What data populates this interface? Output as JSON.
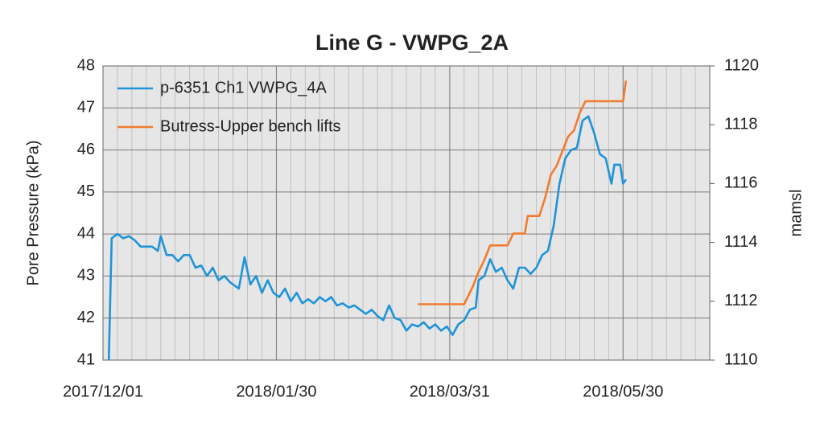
{
  "chart_data": {
    "type": "line",
    "title": "Line G - VWPG_2A",
    "ylabel": "Pore Pressure (kPa)",
    "y2label": "mamsl",
    "xlim": [
      "2017/12/01",
      "2018/06/29"
    ],
    "xticks": [
      "2017/12/01",
      "2018/01/30",
      "2018/03/31",
      "2018/05/30"
    ],
    "ylim": [
      41,
      48
    ],
    "yticks": [
      41,
      42,
      43,
      44,
      45,
      46,
      47,
      48
    ],
    "y2lim": [
      1110,
      1120
    ],
    "y2ticks": [
      1110,
      1112,
      1114,
      1116,
      1118,
      1120
    ],
    "grid": true,
    "legend": "upper left",
    "series": [
      {
        "name": "p-6351 Ch1 VWPG_4A",
        "color": "#1f93d8",
        "x": [
          "2017/12/03",
          "2017/12/04",
          "2017/12/06",
          "2017/12/08",
          "2017/12/10",
          "2017/12/12",
          "2017/12/14",
          "2017/12/16",
          "2017/12/18",
          "2017/12/20",
          "2017/12/21",
          "2017/12/23",
          "2017/12/25",
          "2017/12/27",
          "2017/12/29",
          "2017/12/31",
          "2018/01/02",
          "2018/01/04",
          "2018/01/06",
          "2018/01/08",
          "2018/01/10",
          "2018/01/12",
          "2018/01/14",
          "2018/01/17",
          "2018/01/19",
          "2018/01/21",
          "2018/01/23",
          "2018/01/25",
          "2018/01/27",
          "2018/01/29",
          "2018/01/31",
          "2018/02/02",
          "2018/02/04",
          "2018/02/06",
          "2018/02/08",
          "2018/02/10",
          "2018/02/12",
          "2018/02/14",
          "2018/02/16",
          "2018/02/18",
          "2018/02/20",
          "2018/02/22",
          "2018/02/24",
          "2018/02/26",
          "2018/02/28",
          "2018/03/02",
          "2018/03/04",
          "2018/03/06",
          "2018/03/08",
          "2018/03/10",
          "2018/03/12",
          "2018/03/14",
          "2018/03/16",
          "2018/03/18",
          "2018/03/20",
          "2018/03/22",
          "2018/03/24",
          "2018/03/26",
          "2018/03/28",
          "2018/03/30",
          "2018/04/01",
          "2018/04/03",
          "2018/04/05",
          "2018/04/07",
          "2018/04/09",
          "2018/04/10",
          "2018/04/12",
          "2018/04/14",
          "2018/04/16",
          "2018/04/18",
          "2018/04/20",
          "2018/04/22",
          "2018/04/24",
          "2018/04/26",
          "2018/04/28",
          "2018/04/30",
          "2018/05/02",
          "2018/05/04",
          "2018/05/06",
          "2018/05/08",
          "2018/05/10",
          "2018/05/12",
          "2018/05/14",
          "2018/05/16",
          "2018/05/18",
          "2018/05/20",
          "2018/05/22",
          "2018/05/24",
          "2018/05/26",
          "2018/05/27",
          "2018/05/29",
          "2018/05/30",
          "2018/05/31"
        ],
        "values": [
          41,
          43.9,
          44.0,
          43.9,
          43.95,
          43.85,
          43.7,
          43.7,
          43.7,
          43.6,
          43.95,
          43.5,
          43.5,
          43.35,
          43.5,
          43.5,
          43.2,
          43.25,
          43.0,
          43.2,
          42.9,
          43.0,
          42.85,
          42.7,
          43.45,
          42.8,
          43.0,
          42.6,
          42.9,
          42.6,
          42.5,
          42.7,
          42.4,
          42.6,
          42.35,
          42.45,
          42.35,
          42.5,
          42.4,
          42.5,
          42.3,
          42.35,
          42.25,
          42.3,
          42.2,
          42.1,
          42.2,
          42.05,
          41.95,
          42.3,
          42.0,
          41.95,
          41.7,
          41.85,
          41.8,
          41.9,
          41.75,
          41.85,
          41.7,
          41.8,
          41.6,
          41.85,
          41.95,
          42.2,
          42.25,
          42.9,
          43.0,
          43.4,
          43.1,
          43.2,
          42.9,
          42.7,
          43.2,
          43.2,
          43.05,
          43.2,
          43.5,
          43.6,
          44.2,
          45.2,
          45.8,
          46.0,
          46.05,
          46.7,
          46.8,
          46.4,
          45.9,
          45.8,
          45.2,
          45.65,
          45.65,
          45.2,
          45.3
        ]
      },
      {
        "name": "Butress-Upper bench lifts",
        "color": "#f07c2f",
        "axis": "y2",
        "x": [
          "2018/03/20",
          "2018/04/05",
          "2018/04/08",
          "2018/04/10",
          "2018/04/12",
          "2018/04/14",
          "2018/04/20",
          "2018/04/22",
          "2018/04/26",
          "2018/04/27",
          "2018/05/01",
          "2018/05/03",
          "2018/05/05",
          "2018/05/07",
          "2018/05/09",
          "2018/05/11",
          "2018/05/13",
          "2018/05/15",
          "2018/05/17",
          "2018/05/30",
          "2018/05/31"
        ],
        "values": [
          1111.9,
          1111.9,
          1112.5,
          1113,
          1113.4,
          1113.9,
          1113.9,
          1114.3,
          1114.3,
          1114.9,
          1114.9,
          1115.5,
          1116.3,
          1116.6,
          1117.1,
          1117.6,
          1117.8,
          1118.4,
          1118.8,
          1118.8,
          1119.5
        ]
      }
    ]
  }
}
